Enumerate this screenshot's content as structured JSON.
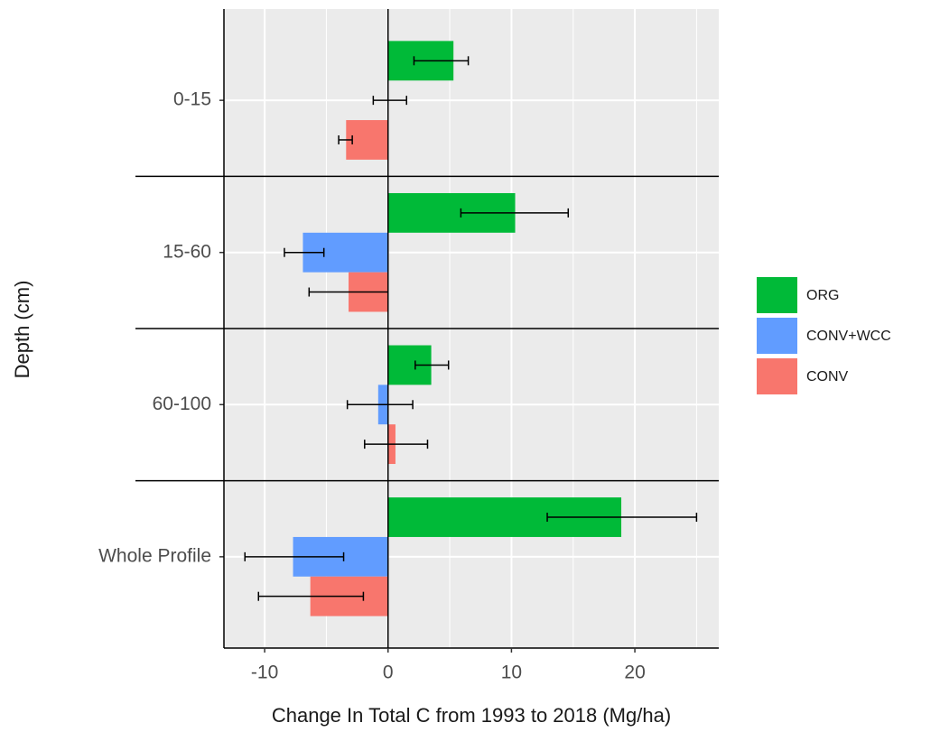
{
  "chart_data": {
    "type": "hbar",
    "x_label": "Change In Total C from 1993 to 2018 (Mg/ha)",
    "y_label": "Depth (cm)",
    "categories": [
      "0-15",
      "15-60",
      "60-100",
      "Whole Profile"
    ],
    "series": [
      {
        "name": "ORG",
        "color": "#00ba38",
        "values": [
          5.3,
          10.3,
          3.5,
          18.9
        ],
        "error_low": [
          2.1,
          5.9,
          2.2,
          12.9
        ],
        "error_high": [
          6.5,
          14.6,
          4.9,
          25.0
        ]
      },
      {
        "name": "CONV+WCC",
        "color": "#619cff",
        "values": [
          0,
          -6.9,
          -0.8,
          -7.7
        ],
        "error_low": [
          -1.2,
          -8.4,
          -3.3,
          -11.6
        ],
        "error_high": [
          1.5,
          -5.2,
          2.0,
          -3.6
        ]
      },
      {
        "name": "CONV",
        "color": "#f8766d",
        "values": [
          -3.4,
          -3.2,
          0.6,
          -6.3
        ],
        "error_low": [
          -4.0,
          -6.4,
          -1.9,
          -10.5
        ],
        "error_high": [
          -2.9,
          0,
          3.2,
          -2.0
        ]
      }
    ],
    "xlim": [
      -13.3,
      26.8
    ],
    "xticks": [
      -10,
      0,
      10,
      20
    ],
    "x_minor_ticks": [
      -5,
      5,
      15,
      25
    ],
    "grid": true
  }
}
